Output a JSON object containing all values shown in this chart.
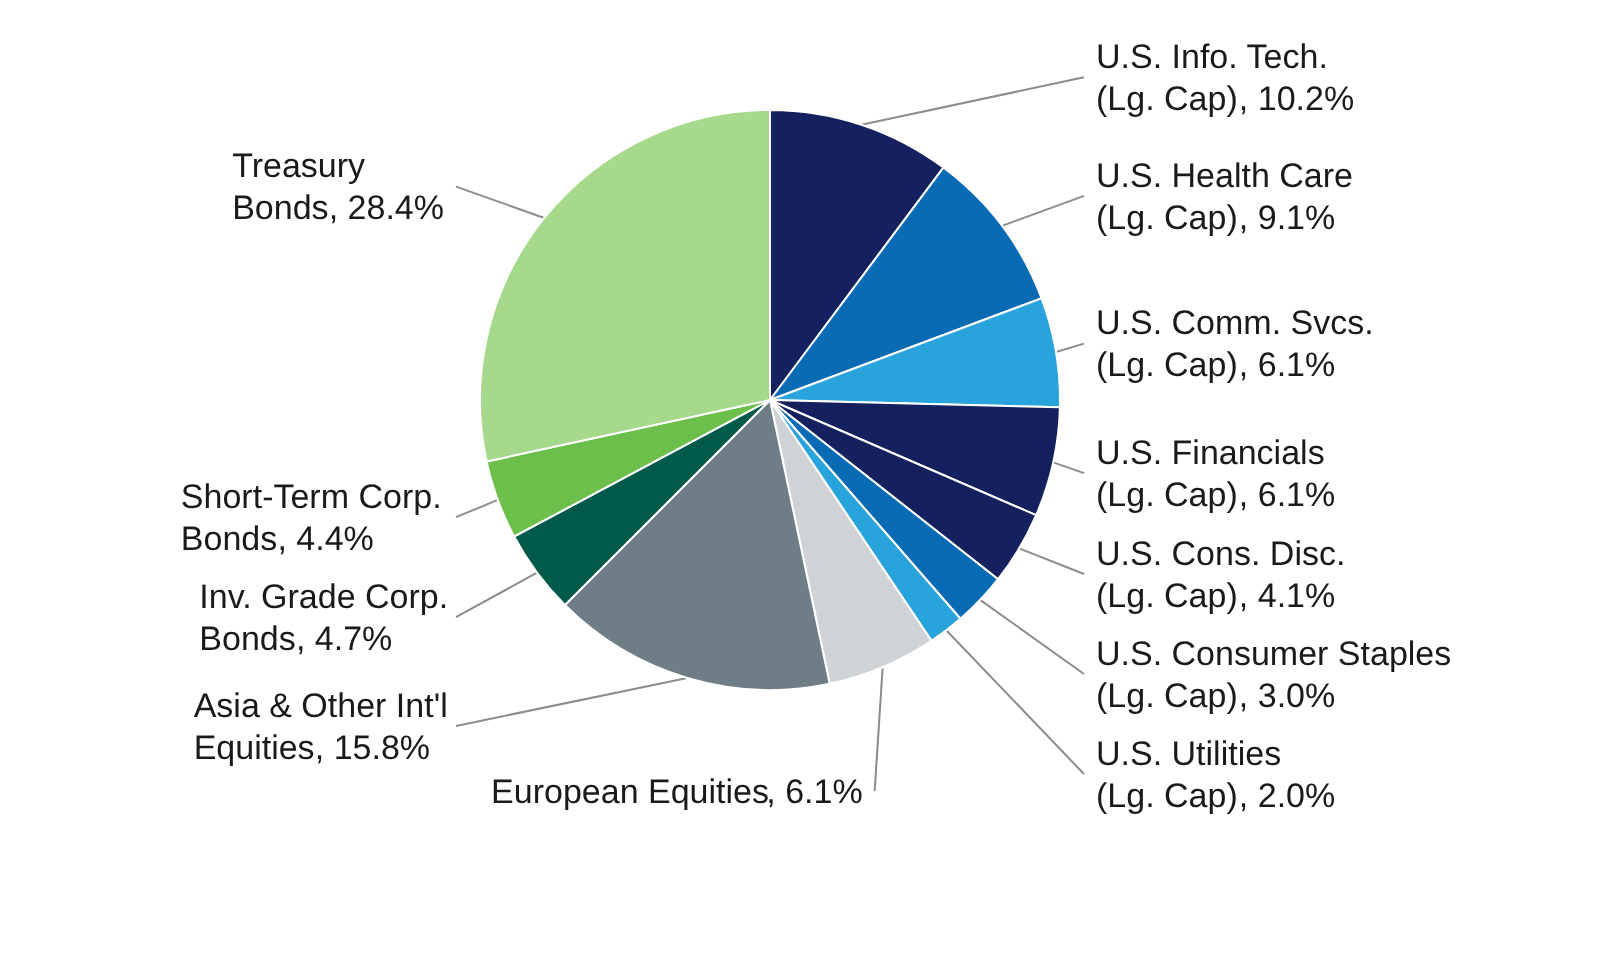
{
  "chart_data": {
    "type": "pie",
    "categories": [
      "U.S. Info. Tech. (Lg. Cap)",
      "U.S. Health Care (Lg. Cap)",
      "U.S. Comm. Svcs. (Lg. Cap)",
      "U.S. Financials (Lg. Cap)",
      "U.S. Cons. Disc. (Lg. Cap)",
      "U.S. Consumer Staples (Lg. Cap)",
      "U.S. Utilities (Lg. Cap)",
      "European Equities",
      "Asia & Other Int'l Equities",
      "Inv. Grade Corp. Bonds",
      "Short-Term Corp. Bonds",
      "Treasury Bonds"
    ],
    "values": [
      10.2,
      9.1,
      6.1,
      6.1,
      4.1,
      3.0,
      2.0,
      6.1,
      15.8,
      4.7,
      4.4,
      28.4
    ],
    "colors": [
      "#14215e",
      "#0a6bb5",
      "#29a3dc",
      "#14215e",
      "#14215e",
      "#0a6bb5",
      "#29a3dc",
      "#d0d3d6",
      "#6f7d87",
      "#005a4a",
      "#6cbf4a",
      "#a6d98c"
    ],
    "data_labels": true,
    "value_labels": [
      ", 10.2%",
      ", 9.1%",
      ", 6.1%",
      ", 6.1%",
      ", 4.1%",
      ", 3.0%",
      ", 2.0%",
      ", 6.1%",
      ", 15.8%",
      ", 4.7%",
      ", 4.4%",
      ", 28.4%"
    ]
  }
}
